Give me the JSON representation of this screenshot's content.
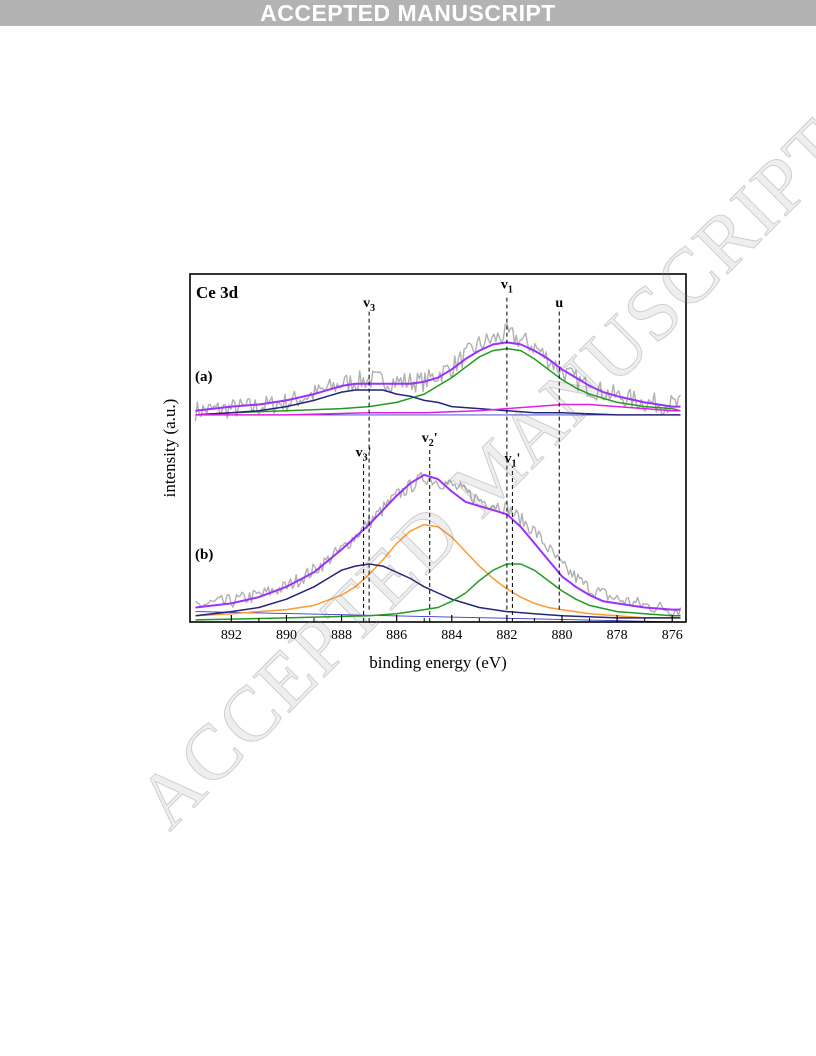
{
  "banner": {
    "text": "ACCEPTED MANUSCRIPT"
  },
  "watermark": {
    "text": "ACCEPTED MANUSCRIPT"
  },
  "colors": {
    "raw": "#b0b0b0",
    "envelope": "#9b30ff",
    "navy": "#24247a",
    "green": "#229a22",
    "magenta": "#e020e0",
    "orange": "#ff9a30",
    "baseline": "#3838c8"
  },
  "chart_data": {
    "type": "line",
    "title": "Ce 3d",
    "xlabel": "binding energy (eV)",
    "ylabel": "intensity (a.u.)",
    "xlim": [
      893.5,
      875.5
    ],
    "x_reversed": true,
    "xticks": [
      892,
      890,
      888,
      886,
      884,
      882,
      880,
      878,
      876
    ],
    "ylim": [
      0,
      1.68
    ],
    "grid": false,
    "panels": [
      {
        "label": "(a)",
        "offset": 1.0,
        "series": [
          {
            "name": "",
            "kind": "raw",
            "color": "#b0b0b0",
            "noise": 0.05,
            "offset": 1.0,
            "x": [
              893.3,
              892,
              891,
              890,
              889,
              888,
              887,
              886,
              885,
              884,
              883,
              882,
              881,
              880,
              879,
              878,
              877,
              876,
              875.7
            ],
            "y": [
              0.02,
              0.03,
              0.04,
              0.06,
              0.1,
              0.15,
              0.17,
              0.16,
              0.16,
              0.23,
              0.34,
              0.39,
              0.33,
              0.21,
              0.13,
              0.09,
              0.06,
              0.05,
              0.05
            ]
          },
          {
            "name": "",
            "kind": "envelope",
            "color": "#9b30ff",
            "offset": 1.0,
            "x": [
              893.3,
              892,
              891,
              890,
              889,
              888,
              887.5,
              887,
              886.5,
              886,
              885.5,
              885,
              884.5,
              884,
              883.5,
              883,
              882.5,
              882,
              881.5,
              881,
              880.5,
              880,
              879.5,
              879,
              878.5,
              878,
              877,
              876,
              875.7
            ],
            "y": [
              0.02,
              0.04,
              0.05,
              0.07,
              0.1,
              0.14,
              0.15,
              0.15,
              0.15,
              0.15,
              0.15,
              0.16,
              0.18,
              0.22,
              0.27,
              0.31,
              0.34,
              0.35,
              0.34,
              0.31,
              0.27,
              0.22,
              0.18,
              0.14,
              0.11,
              0.09,
              0.06,
              0.04,
              0.04
            ]
          },
          {
            "name": "",
            "kind": "component",
            "color": "#229a22",
            "offset": 1.0,
            "x": [
              893.3,
              892,
              890,
              888,
              887,
              886,
              885.5,
              885,
              884.5,
              884,
              883.5,
              883,
              882.5,
              882,
              881.5,
              881,
              880.5,
              880,
              879.5,
              879,
              878.5,
              878,
              877,
              876,
              875.7
            ],
            "y": [
              0.0,
              0.01,
              0.02,
              0.03,
              0.04,
              0.06,
              0.08,
              0.1,
              0.14,
              0.18,
              0.23,
              0.28,
              0.31,
              0.32,
              0.31,
              0.27,
              0.22,
              0.17,
              0.13,
              0.1,
              0.08,
              0.06,
              0.04,
              0.03,
              0.02
            ]
          },
          {
            "name": "",
            "kind": "component",
            "color": "#24247a",
            "offset": 1.0,
            "x": [
              893.3,
              892,
              891,
              890,
              889,
              888.5,
              888,
              887.5,
              887,
              886.5,
              886,
              885.5,
              885,
              884.5,
              884,
              883,
              882,
              881,
              880,
              878,
              876,
              875.7
            ],
            "y": [
              0.0,
              0.01,
              0.02,
              0.04,
              0.07,
              0.09,
              0.11,
              0.12,
              0.12,
              0.12,
              0.1,
              0.09,
              0.07,
              0.06,
              0.04,
              0.03,
              0.02,
              0.01,
              0.01,
              0.0,
              0.0,
              0.0
            ]
          },
          {
            "name": "",
            "kind": "component",
            "color": "#e020e0",
            "offset": 1.0,
            "x": [
              893.3,
              890,
              887,
              885,
              883,
              882,
              881,
              880,
              879,
              878,
              877,
              876,
              875.7
            ],
            "y": [
              0.0,
              0.0,
              0.01,
              0.01,
              0.02,
              0.03,
              0.04,
              0.05,
              0.05,
              0.04,
              0.03,
              0.02,
              0.02
            ]
          },
          {
            "name": "",
            "kind": "baseline",
            "color": "#3838c8",
            "offset": 1.0,
            "x": [
              893.3,
              875.7
            ],
            "y": [
              0.0,
              0.0
            ]
          }
        ]
      },
      {
        "label": "(b)",
        "offset": 0.0,
        "series": [
          {
            "name": "",
            "kind": "raw",
            "color": "#b0b0b0",
            "noise": 0.035,
            "offset": 0.0,
            "x": [
              893.3,
              892,
              891,
              890,
              889,
              888,
              887,
              886,
              885,
              884,
              883,
              882,
              881,
              880,
              879,
              878,
              877,
              876,
              875.7
            ],
            "y": [
              0.08,
              0.1,
              0.13,
              0.17,
              0.25,
              0.35,
              0.48,
              0.61,
              0.7,
              0.66,
              0.59,
              0.55,
              0.44,
              0.27,
              0.16,
              0.11,
              0.08,
              0.06,
              0.06
            ]
          },
          {
            "name": "",
            "kind": "envelope",
            "color": "#9b30ff",
            "offset": 0.0,
            "x": [
              893.3,
              892,
              891,
              890,
              889,
              888,
              887.5,
              887,
              886.5,
              886,
              885.5,
              885,
              884.5,
              884,
              883.5,
              883,
              882.5,
              882,
              881.5,
              881,
              880.5,
              880,
              879.5,
              879,
              878.5,
              878,
              877,
              876,
              875.7
            ],
            "y": [
              0.07,
              0.09,
              0.12,
              0.17,
              0.24,
              0.35,
              0.41,
              0.47,
              0.54,
              0.61,
              0.67,
              0.71,
              0.69,
              0.63,
              0.58,
              0.56,
              0.54,
              0.52,
              0.46,
              0.38,
              0.3,
              0.22,
              0.17,
              0.13,
              0.1,
              0.09,
              0.07,
              0.06,
              0.06
            ]
          },
          {
            "name": "",
            "kind": "component",
            "color": "#ff9a30",
            "offset": 0.0,
            "x": [
              893.3,
              892,
              891,
              890,
              889,
              888,
              887.5,
              887,
              886.5,
              886,
              885.5,
              885,
              884.5,
              884,
              883.5,
              883,
              882.5,
              882,
              881.5,
              881,
              880.5,
              880,
              879,
              878,
              877,
              876,
              875.7
            ],
            "y": [
              0.03,
              0.04,
              0.05,
              0.06,
              0.08,
              0.13,
              0.17,
              0.23,
              0.3,
              0.38,
              0.44,
              0.47,
              0.46,
              0.41,
              0.34,
              0.27,
              0.21,
              0.16,
              0.12,
              0.09,
              0.07,
              0.06,
              0.04,
              0.03,
              0.02,
              0.02,
              0.02
            ]
          },
          {
            "name": "",
            "kind": "component",
            "color": "#24247a",
            "offset": 0.0,
            "x": [
              893.3,
              892,
              891,
              890,
              889,
              888.5,
              888,
              887.5,
              887,
              886.5,
              886,
              885.5,
              885,
              884.5,
              884,
              883.5,
              883,
              882,
              881,
              880,
              878,
              876,
              875.7
            ],
            "y": [
              0.03,
              0.05,
              0.07,
              0.11,
              0.17,
              0.21,
              0.25,
              0.27,
              0.28,
              0.27,
              0.24,
              0.21,
              0.17,
              0.14,
              0.11,
              0.09,
              0.07,
              0.05,
              0.04,
              0.03,
              0.02,
              0.02,
              0.02
            ]
          },
          {
            "name": "",
            "kind": "component",
            "color": "#229a22",
            "offset": 0.0,
            "x": [
              893.3,
              890,
              887,
              886,
              885,
              884.5,
              884,
              883.5,
              883,
              882.5,
              882,
              881.5,
              881,
              880.5,
              880,
              879.5,
              879,
              878,
              877,
              876,
              875.7
            ],
            "y": [
              0.01,
              0.02,
              0.03,
              0.04,
              0.06,
              0.07,
              0.1,
              0.14,
              0.2,
              0.25,
              0.28,
              0.28,
              0.25,
              0.2,
              0.15,
              0.11,
              0.08,
              0.05,
              0.04,
              0.03,
              0.03
            ]
          },
          {
            "name": "",
            "kind": "baseline",
            "color": "#3838c8",
            "offset": 0.0,
            "x": [
              893.3,
              875.7
            ],
            "y": [
              0.05,
              0.0
            ]
          }
        ]
      }
    ],
    "markers": [
      {
        "label": "v",
        "sub": "3",
        "prime": "",
        "x": 887.0,
        "ylim": [
          0.06,
          1.5
        ],
        "label_y": 1.52
      },
      {
        "label": "v",
        "sub": "1",
        "prime": "",
        "x": 882.0,
        "ylim": [
          0.06,
          1.58
        ],
        "label_y": 1.61
      },
      {
        "label": "u",
        "sub": "",
        "prime": "",
        "x": 880.1,
        "ylim": [
          0.06,
          1.5
        ],
        "label_y": 1.52
      },
      {
        "label": "v",
        "sub": "3",
        "prime": "'",
        "x": 887.2,
        "ylim": [
          0.0,
          0.78
        ],
        "label_y": 0.8
      },
      {
        "label": "v",
        "sub": "2",
        "prime": "'",
        "x": 884.8,
        "ylim": [
          0.0,
          0.83
        ],
        "label_y": 0.87
      },
      {
        "label": "v",
        "sub": "1",
        "prime": "'",
        "x": 881.8,
        "ylim": [
          0.0,
          0.75
        ],
        "label_y": 0.77
      }
    ]
  }
}
